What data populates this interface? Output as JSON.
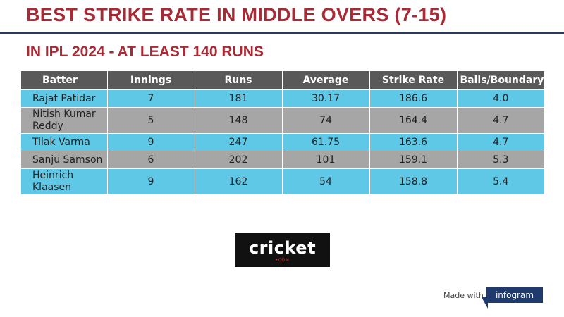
{
  "header": {
    "title": "BEST STRIKE RATE IN MIDDLE OVERS (7-15)",
    "subtitle": "IN IPL 2024 - AT LEAST 140 RUNS"
  },
  "colors": {
    "title": "#a82a35",
    "header_row": "#595959",
    "row_blue": "#5ec8e6",
    "row_gray": "#a6a6a6"
  },
  "chart_data": {
    "type": "table",
    "columns": [
      "Batter",
      "Innings",
      "Runs",
      "Average",
      "Strike Rate",
      "Balls/Boundary"
    ],
    "rows": [
      [
        "Rajat Patidar",
        "7",
        "181",
        "30.17",
        "186.6",
        "4.0"
      ],
      [
        "Nitish Kumar Reddy",
        "5",
        "148",
        "74",
        "164.4",
        "4.7"
      ],
      [
        "Tilak Varma",
        "9",
        "247",
        "61.75",
        "163.6",
        "4.7"
      ],
      [
        "Sanju Samson",
        "6",
        "202",
        "101",
        "159.1",
        "5.3"
      ],
      [
        "Heinrich Klaasen",
        "9",
        "162",
        "54",
        "158.8",
        "5.4"
      ]
    ]
  },
  "logo": {
    "text": "cricket",
    "sub": "•COM",
    "icon": "cricket-com-logo"
  },
  "footer": {
    "made_with": "Made with",
    "brand": "infogram"
  }
}
